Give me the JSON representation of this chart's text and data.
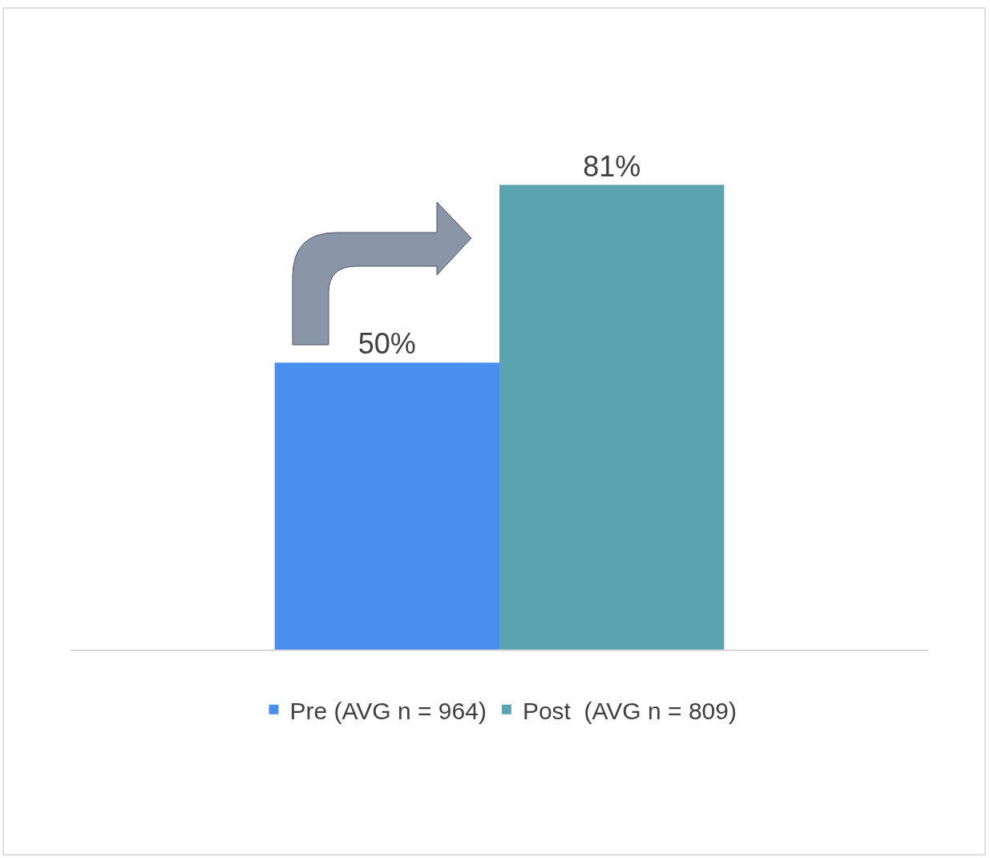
{
  "chart_data": {
    "type": "bar",
    "categories": [
      null
    ],
    "series": [
      {
        "name": "Pre (AVG n = 964)",
        "color": "#4a8ef0",
        "values": [
          50
        ],
        "value_labels": [
          "50%"
        ]
      },
      {
        "name": "Post  (AVG n = 809)",
        "color": "#5ba3b0",
        "values": [
          81
        ],
        "value_labels": [
          "81%"
        ]
      }
    ],
    "legend": "bottom"
  }
}
